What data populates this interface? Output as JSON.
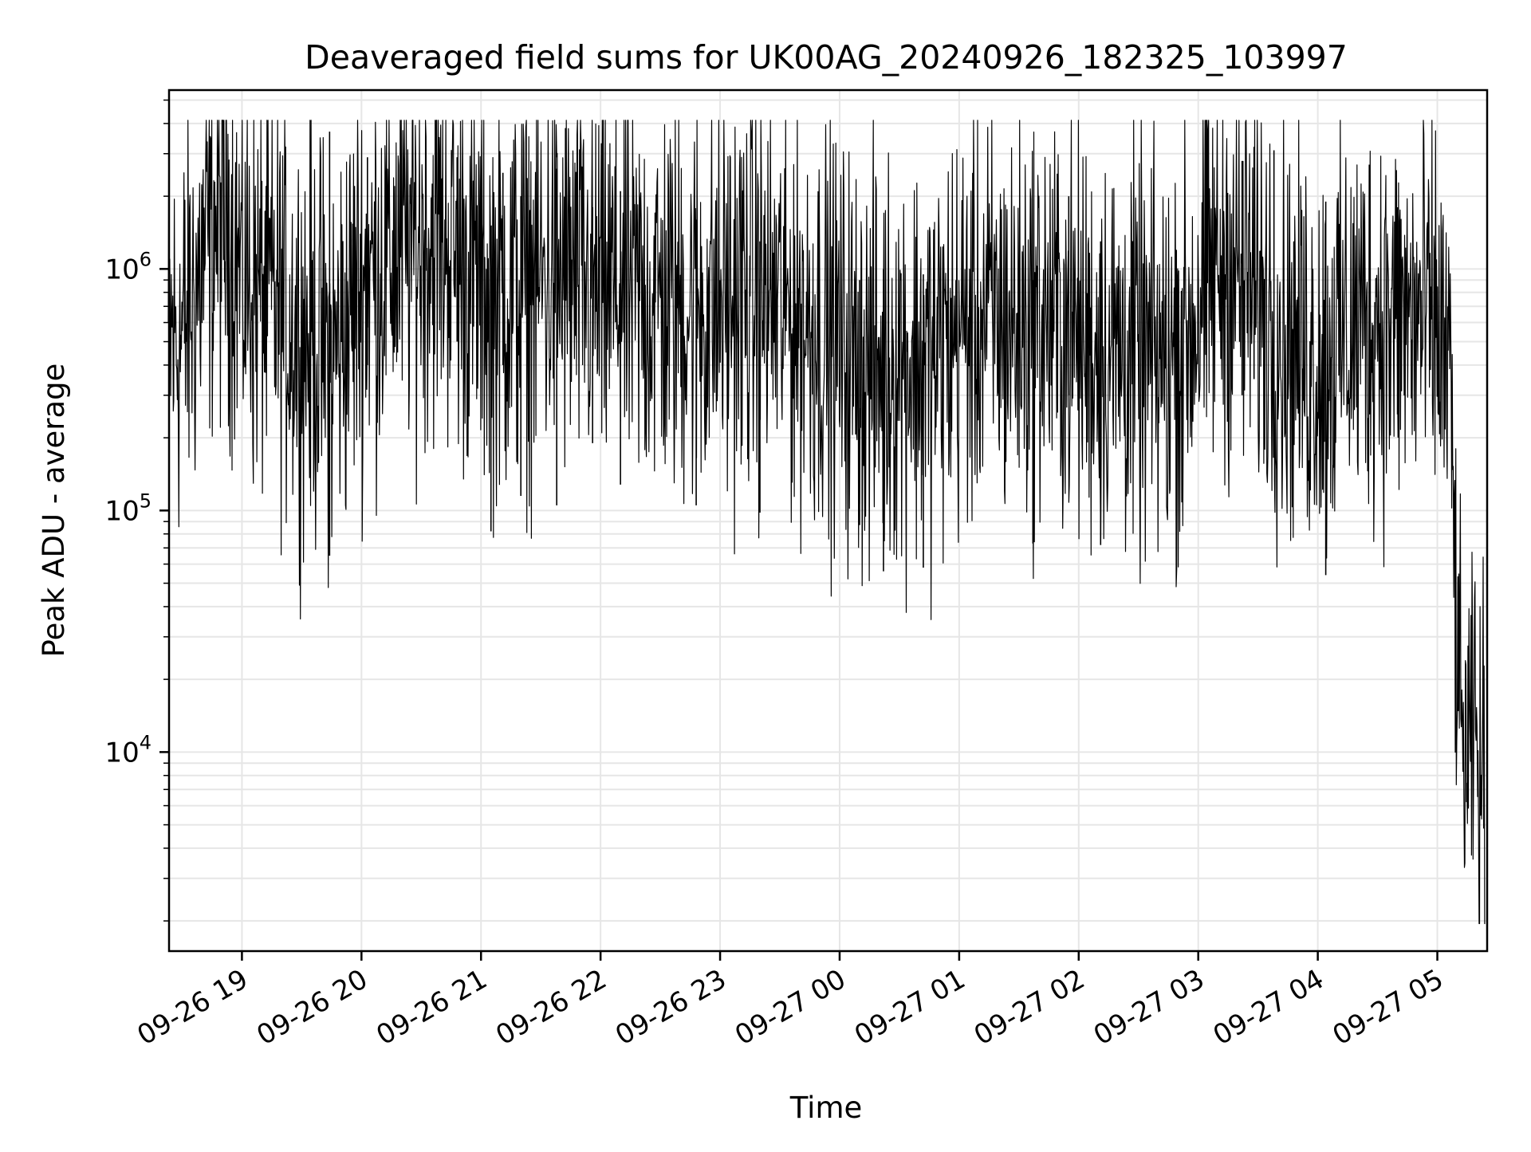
{
  "chart_data": {
    "type": "line",
    "title": "Deaveraged field sums for UK00AG_20240926_182325_103997",
    "xlabel": "Time",
    "ylabel": "Peak ADU - average",
    "yscale": "log",
    "ylim": [
      1500,
      5500000
    ],
    "xlim": [
      "2024-09-26 18:23:25",
      "2024-09-27 05:25:00"
    ],
    "grid": true,
    "line_color": "#000000",
    "x_ticks": [
      {
        "value": "2024-09-26 19:00",
        "label": "09-26 19"
      },
      {
        "value": "2024-09-26 20:00",
        "label": "09-26 20"
      },
      {
        "value": "2024-09-26 21:00",
        "label": "09-26 21"
      },
      {
        "value": "2024-09-26 22:00",
        "label": "09-26 22"
      },
      {
        "value": "2024-09-26 23:00",
        "label": "09-26 23"
      },
      {
        "value": "2024-09-27 00:00",
        "label": "09-27 00"
      },
      {
        "value": "2024-09-27 01:00",
        "label": "09-27 01"
      },
      {
        "value": "2024-09-27 02:00",
        "label": "09-27 02"
      },
      {
        "value": "2024-09-27 03:00",
        "label": "09-27 03"
      },
      {
        "value": "2024-09-27 04:00",
        "label": "09-27 04"
      },
      {
        "value": "2024-09-27 05:00",
        "label": "09-27 05"
      }
    ],
    "y_ticks": [
      {
        "value": 10000,
        "base": "10",
        "exp": "4"
      },
      {
        "value": 100000,
        "base": "10",
        "exp": "5"
      },
      {
        "value": 1000000,
        "base": "10",
        "exp": "6"
      }
    ],
    "series": [
      {
        "points": [
          [
            "2024-09-26 18:23",
            500000
          ],
          [
            "2024-09-26 18:30",
            520000
          ],
          [
            "2024-09-26 18:38",
            900000
          ],
          [
            "2024-09-26 18:45",
            1500000
          ],
          [
            "2024-09-26 18:52",
            1700000
          ],
          [
            "2024-09-26 19:00",
            950000
          ],
          [
            "2024-09-26 19:08",
            800000
          ],
          [
            "2024-09-26 19:15",
            750000
          ],
          [
            "2024-09-26 19:23",
            620000
          ],
          [
            "2024-09-26 19:30",
            550000
          ],
          [
            "2024-09-26 19:38",
            500000
          ],
          [
            "2024-09-26 19:45",
            420000
          ],
          [
            "2024-09-26 19:53",
            620000
          ],
          [
            "2024-09-26 20:00",
            900000
          ],
          [
            "2024-09-26 20:08",
            1000000
          ],
          [
            "2024-09-26 20:15",
            1150000
          ],
          [
            "2024-09-26 20:23",
            1250000
          ],
          [
            "2024-09-26 20:30",
            1350000
          ],
          [
            "2024-09-26 20:38",
            1400000
          ],
          [
            "2024-09-26 20:45",
            1300000
          ],
          [
            "2024-09-26 20:53",
            1000000
          ],
          [
            "2024-09-26 21:00",
            850000
          ],
          [
            "2024-09-26 21:08",
            780000
          ],
          [
            "2024-09-26 21:15",
            800000
          ],
          [
            "2024-09-26 21:23",
            850000
          ],
          [
            "2024-09-26 21:30",
            900000
          ],
          [
            "2024-09-26 21:38",
            950000
          ],
          [
            "2024-09-26 21:45",
            880000
          ],
          [
            "2024-09-26 21:53",
            850000
          ],
          [
            "2024-09-26 22:00",
            820000
          ],
          [
            "2024-09-26 22:08",
            800000
          ],
          [
            "2024-09-26 22:15",
            780000
          ],
          [
            "2024-09-26 22:23",
            760000
          ],
          [
            "2024-09-26 22:30",
            750000
          ],
          [
            "2024-09-26 22:38",
            730000
          ],
          [
            "2024-09-26 22:45",
            720000
          ],
          [
            "2024-09-26 22:53",
            700000
          ],
          [
            "2024-09-26 23:00",
            720000
          ],
          [
            "2024-09-26 23:08",
            760000
          ],
          [
            "2024-09-26 23:15",
            800000
          ],
          [
            "2024-09-26 23:23",
            750000
          ],
          [
            "2024-09-26 23:30",
            700000
          ],
          [
            "2024-09-26 23:38",
            650000
          ],
          [
            "2024-09-26 23:45",
            600000
          ],
          [
            "2024-09-26 23:53",
            550000
          ],
          [
            "2024-09-27 00:00",
            480000
          ],
          [
            "2024-09-27 00:08",
            420000
          ],
          [
            "2024-09-27 00:15",
            380000
          ],
          [
            "2024-09-27 00:23",
            400000
          ],
          [
            "2024-09-27 00:30",
            450000
          ],
          [
            "2024-09-27 00:38",
            420000
          ],
          [
            "2024-09-27 00:45",
            400000
          ],
          [
            "2024-09-27 00:53",
            480000
          ],
          [
            "2024-09-27 01:00",
            580000
          ],
          [
            "2024-09-27 01:08",
            600000
          ],
          [
            "2024-09-27 01:15",
            620000
          ],
          [
            "2024-09-27 01:23",
            600000
          ],
          [
            "2024-09-27 01:30",
            580000
          ],
          [
            "2024-09-27 01:38",
            600000
          ],
          [
            "2024-09-27 01:45",
            620000
          ],
          [
            "2024-09-27 01:53",
            560000
          ],
          [
            "2024-09-27 02:00",
            520000
          ],
          [
            "2024-09-27 02:08",
            480000
          ],
          [
            "2024-09-27 02:15",
            470000
          ],
          [
            "2024-09-27 02:23",
            460000
          ],
          [
            "2024-09-27 02:30",
            430000
          ],
          [
            "2024-09-27 02:38",
            400000
          ],
          [
            "2024-09-27 02:45",
            420000
          ],
          [
            "2024-09-27 02:53",
            500000
          ],
          [
            "2024-09-27 03:00",
            700000
          ],
          [
            "2024-09-27 03:08",
            950000
          ],
          [
            "2024-09-27 03:15",
            1050000
          ],
          [
            "2024-09-27 03:23",
            900000
          ],
          [
            "2024-09-27 03:30",
            800000
          ],
          [
            "2024-09-27 03:38",
            620000
          ],
          [
            "2024-09-27 03:45",
            520000
          ],
          [
            "2024-09-27 03:53",
            450000
          ],
          [
            "2024-09-27 04:00",
            430000
          ],
          [
            "2024-09-27 04:08",
            480000
          ],
          [
            "2024-09-27 04:15",
            560000
          ],
          [
            "2024-09-27 04:23",
            620000
          ],
          [
            "2024-09-27 04:30",
            650000
          ],
          [
            "2024-09-27 04:38",
            600000
          ],
          [
            "2024-09-27 04:45",
            620000
          ],
          [
            "2024-09-27 04:53",
            600000
          ],
          [
            "2024-09-27 05:00",
            580000
          ],
          [
            "2024-09-27 05:04",
            420000
          ],
          [
            "2024-09-27 05:07",
            300000
          ],
          [
            "2024-09-27 05:09",
            40000
          ],
          [
            "2024-09-27 05:12",
            12000
          ],
          [
            "2024-09-27 05:16",
            8000
          ],
          [
            "2024-09-27 05:19",
            15000
          ],
          [
            "2024-09-27 05:21",
            5500
          ],
          [
            "2024-09-27 05:23",
            12000
          ],
          [
            "2024-09-27 05:24",
            2000
          ]
        ],
        "spikes": [
          [
            "2024-09-26 19:44",
            3700000,
            65000
          ],
          [
            "2024-09-26 20:03",
            2900000,
            400000
          ],
          [
            "2024-09-26 20:48",
            2900000,
            500000
          ],
          [
            "2024-09-26 21:05",
            1300000,
            82000
          ],
          [
            "2024-09-26 21:11",
            2500000,
            400000
          ],
          [
            "2024-09-26 21:20",
            2000000,
            115000
          ],
          [
            "2024-09-26 21:38",
            2600000,
            105000
          ],
          [
            "2024-09-26 21:56",
            1800000,
            190000
          ],
          [
            "2024-09-26 22:10",
            2100000,
            128000
          ],
          [
            "2024-09-26 22:48",
            1600000,
            105000
          ],
          [
            "2024-09-26 23:20",
            1300000,
            98000
          ],
          [
            "2024-09-27 00:10",
            900000,
            87000
          ],
          [
            "2024-09-27 00:22",
            1000000,
            56000
          ],
          [
            "2024-09-27 00:42",
            950000,
            58000
          ],
          [
            "2024-09-27 01:37",
            900000,
            73000
          ],
          [
            "2024-09-27 01:55",
            2000000,
            300000
          ],
          [
            "2024-09-27 02:11",
            1300000,
            72000
          ],
          [
            "2024-09-27 02:49",
            1200000,
            95000
          ],
          [
            "2024-09-27 03:22",
            2800000,
            300000
          ],
          [
            "2024-09-27 03:28",
            3200000,
            350000
          ],
          [
            "2024-09-27 03:38",
            3100000,
            300000
          ],
          [
            "2024-09-27 04:04",
            1900000,
            54000
          ],
          [
            "2024-09-27 04:26",
            2200000,
            250000
          ],
          [
            "2024-09-27 04:40",
            1800000,
            250000
          ]
        ]
      }
    ]
  }
}
